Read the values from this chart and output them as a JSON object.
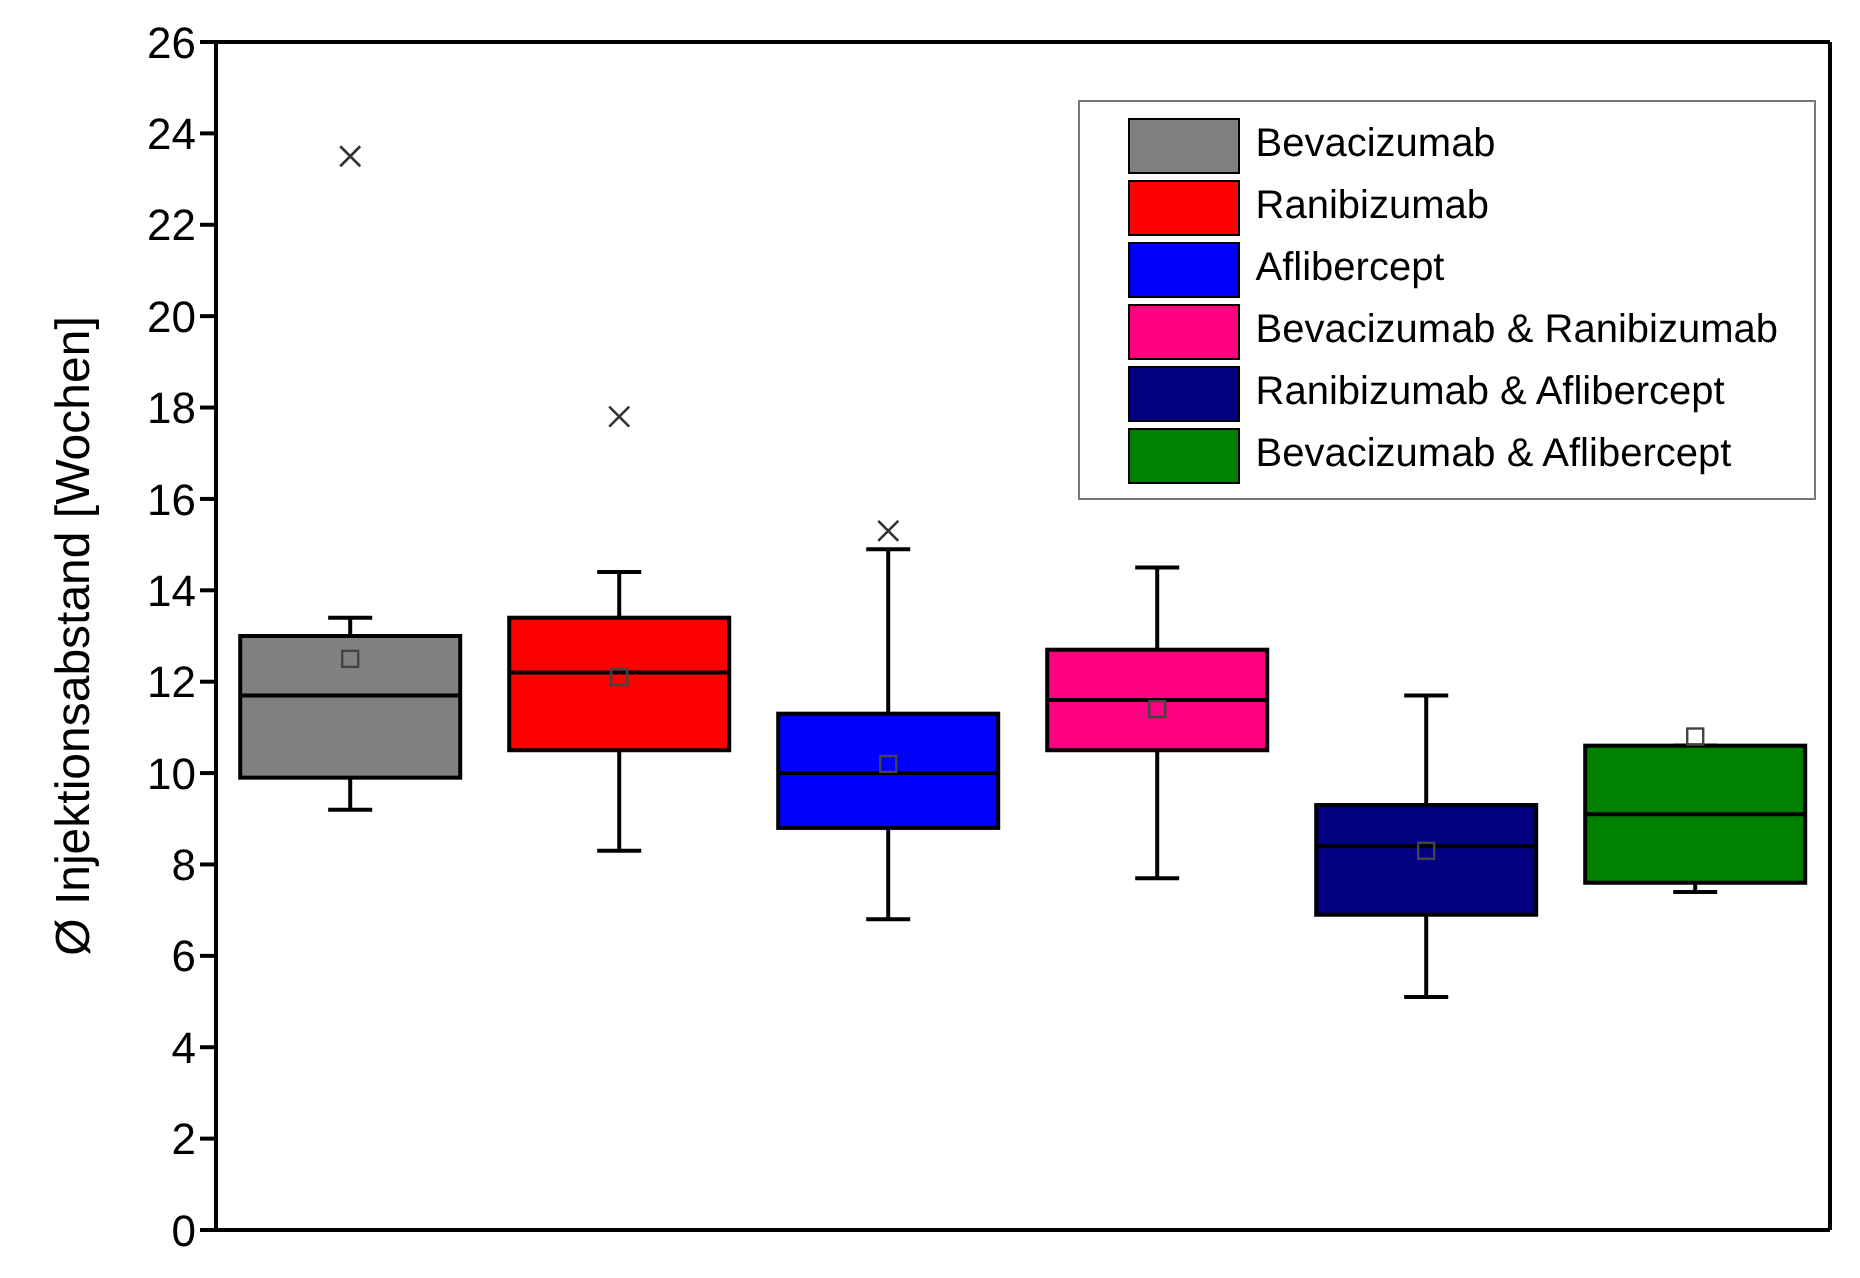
{
  "chart_data": {
    "type": "box",
    "ylabel": "Ø Injektionsabstand [Wochen]",
    "categories": [
      null,
      null,
      null,
      null,
      null,
      null
    ],
    "series": [
      {
        "name": "Bevacizumab",
        "color": "#808080",
        "boxes": [
          {
            "low": 9.2,
            "q1": 9.9,
            "median": 11.7,
            "q3": 13.0,
            "high": 13.4,
            "mean": 12.5,
            "outliers": [
              23.5
            ]
          },
          null,
          null,
          null,
          null,
          null
        ]
      },
      {
        "name": "Ranibizumab",
        "color": "#ff0000",
        "boxes": [
          null,
          {
            "low": 8.3,
            "q1": 10.5,
            "median": 12.2,
            "q3": 13.4,
            "high": 14.4,
            "mean": 12.1,
            "outliers": [
              17.8
            ]
          },
          null,
          null,
          null,
          null
        ]
      },
      {
        "name": "Aflibercept",
        "color": "#0000ff",
        "boxes": [
          null,
          null,
          {
            "low": 6.8,
            "q1": 8.8,
            "median": 10.0,
            "q3": 11.3,
            "high": 14.9,
            "mean": 10.2,
            "outliers": [
              15.3
            ]
          },
          null,
          null,
          null
        ]
      },
      {
        "name": "Bevacizumab & Ranibizumab",
        "color": "#ff0080",
        "boxes": [
          null,
          null,
          null,
          {
            "low": 7.7,
            "q1": 10.5,
            "median": 11.6,
            "q3": 12.7,
            "high": 14.5,
            "mean": 11.4
          },
          null,
          null
        ]
      },
      {
        "name": "Ranibizumab & Aflibercept",
        "color": "#000080",
        "boxes": [
          null,
          null,
          null,
          null,
          {
            "low": 5.1,
            "q1": 6.9,
            "median": 8.4,
            "q3": 9.3,
            "high": 11.7,
            "mean": 8.3
          },
          null
        ]
      },
      {
        "name": "Bevacizumab & Aflibercept",
        "color": "#008000",
        "boxes": [
          null,
          null,
          null,
          null,
          null,
          {
            "low": 7.4,
            "q1": 7.6,
            "median": 9.1,
            "q3": 10.6,
            "high": 10.6,
            "mean": 10.8
          }
        ]
      }
    ],
    "ylim": [
      0,
      26
    ],
    "yticks": [
      0,
      2,
      4,
      6,
      8,
      10,
      12,
      14,
      16,
      18,
      20,
      22,
      24,
      26
    ],
    "legend": "top right",
    "tick_labels": "y"
  }
}
